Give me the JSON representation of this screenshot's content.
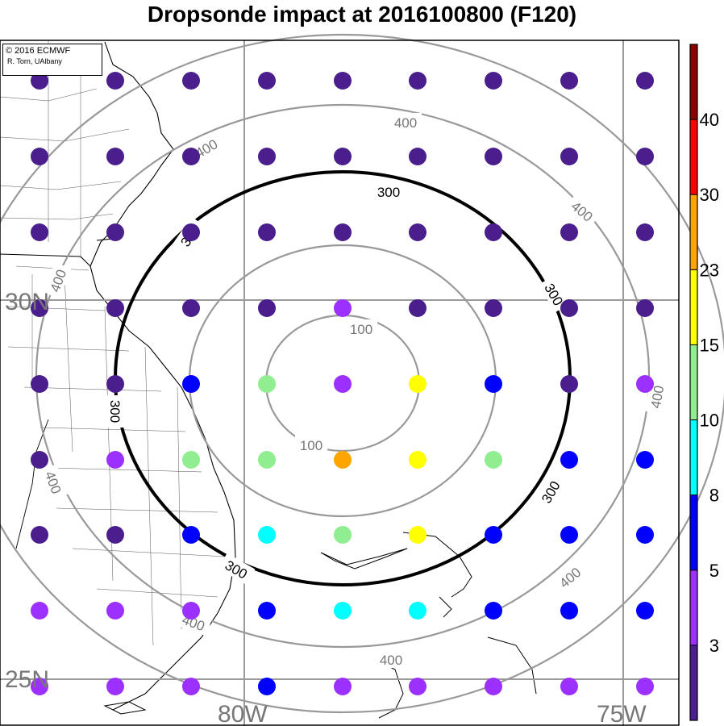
{
  "title": "Dropsonde impact at 2016100800 (F120)",
  "credit": {
    "line1": "© 2016 ECMWF",
    "line2": "R. Torn, UAlbany"
  },
  "map": {
    "lat_labels": [
      "30N",
      "25N"
    ],
    "lon_labels": [
      "80W",
      "75W"
    ],
    "distance_rings_km": [
      100,
      200,
      300,
      400,
      500
    ],
    "highlighted_ring_km": 300,
    "ring_labels": [
      {
        "km": 100,
        "text": "100"
      },
      {
        "km": 300,
        "text": "300"
      },
      {
        "km": 400,
        "text": "400"
      }
    ]
  },
  "colorbar": {
    "colors": [
      "#4a1e8c",
      "#9b30ff",
      "#0000ff",
      "#00ffff",
      "#90ee90",
      "#ffff00",
      "#ffa500",
      "#ff0000",
      "#8b0000"
    ],
    "tick_labels": [
      "3",
      "5",
      "8",
      "10",
      "15",
      "23",
      "30",
      "40"
    ]
  },
  "chart_data": {
    "type": "scatter",
    "title": "Dropsonde impact at 2016100800 (F120)",
    "description_units": "color class index into colorbar.colors (0 = lowest bin)",
    "rows": [
      [
        0,
        0,
        0,
        0,
        0,
        0,
        0,
        0,
        0
      ],
      [
        0,
        0,
        0,
        0,
        0,
        0,
        0,
        0,
        0
      ],
      [
        0,
        0,
        0,
        0,
        0,
        0,
        0,
        0,
        0
      ],
      [
        0,
        0,
        0,
        0,
        1,
        0,
        0,
        0,
        0
      ],
      [
        0,
        0,
        2,
        4,
        1,
        5,
        2,
        0,
        1
      ],
      [
        0,
        1,
        4,
        4,
        6,
        5,
        4,
        2,
        2
      ],
      [
        0,
        0,
        2,
        3,
        4,
        5,
        2,
        2,
        2
      ],
      [
        1,
        1,
        1,
        2,
        3,
        3,
        2,
        2,
        2
      ],
      [
        1,
        1,
        1,
        2,
        1,
        1,
        1,
        1,
        1
      ]
    ]
  }
}
